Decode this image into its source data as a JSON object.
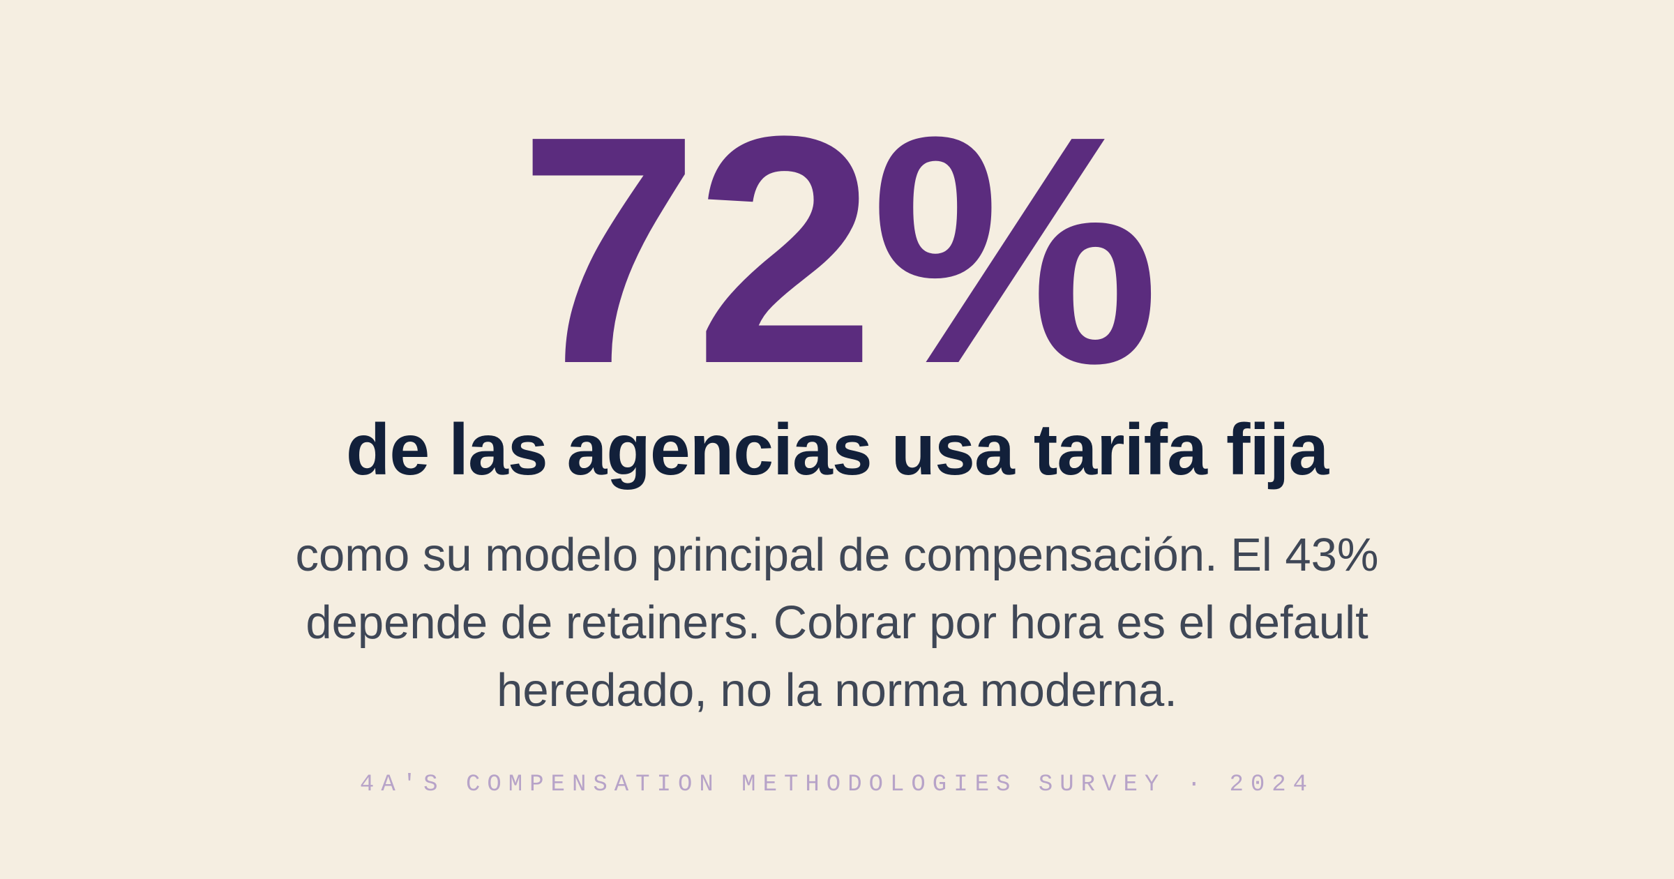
{
  "stat": {
    "value": "72%",
    "headline": "de las agencias usa tarifa fija",
    "body": "como su modelo principal de compensación. El 43% depende de retainers. Cobrar por hora es el default heredado, no la norma moderna.",
    "source": "4A'S COMPENSATION METHODOLOGIES SURVEY · 2024"
  }
}
